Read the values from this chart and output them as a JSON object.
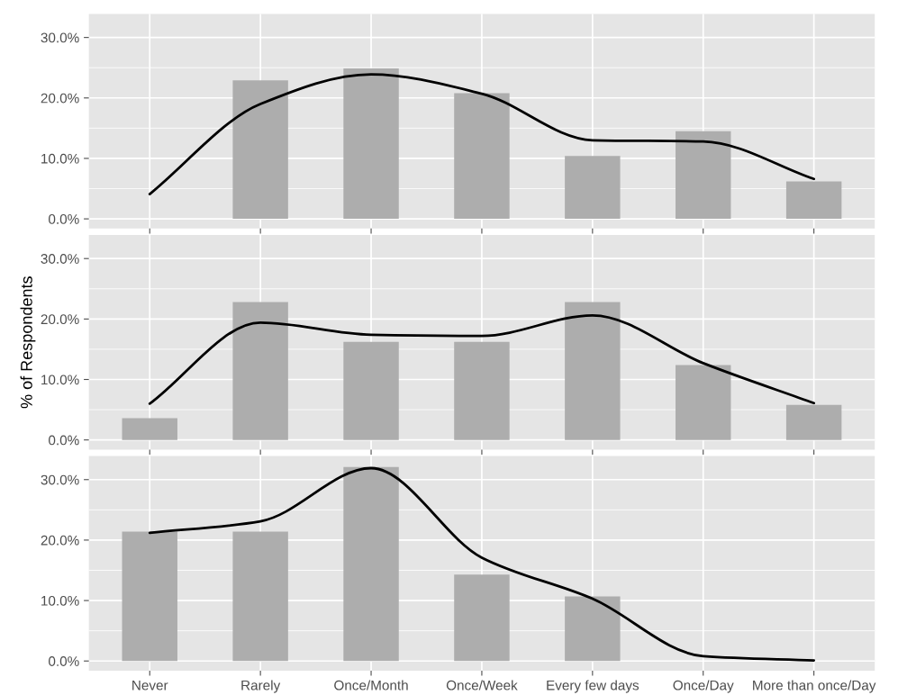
{
  "chart_data": [
    {
      "type": "bar",
      "categories": [
        null,
        null,
        null,
        null,
        null,
        null,
        null
      ],
      "ylim": [
        -1.6,
        33.9
      ],
      "yticks": [
        {
          "value": 0,
          "label": "0.0%"
        },
        {
          "value": 10,
          "label": "10.0%"
        },
        {
          "value": 20,
          "label": "20.0%"
        },
        {
          "value": 30,
          "label": "30.0%"
        }
      ],
      "grid": true,
      "tick_labels": "y",
      "series": [
        {
          "color": "#adadad",
          "values": [
            0,
            22.9,
            24.9,
            20.8,
            10.4,
            14.5,
            6.2
          ]
        },
        {
          "type": "line",
          "color": "#000000",
          "values": [
            4.1,
            19.0,
            23.9,
            20.7,
            13.0,
            12.8,
            6.6
          ]
        }
      ]
    },
    {
      "type": "bar",
      "ylabel": "% of Respondents",
      "categories": [
        null,
        null,
        null,
        null,
        null,
        null,
        null
      ],
      "ylim": [
        -1.6,
        33.9
      ],
      "yticks": [
        {
          "value": 0,
          "label": "0.0%"
        },
        {
          "value": 10,
          "label": "10.0%"
        },
        {
          "value": 20,
          "label": "20.0%"
        },
        {
          "value": 30,
          "label": "30.0%"
        }
      ],
      "grid": true,
      "tick_labels": "y",
      "series": [
        {
          "color": "#adadad",
          "values": [
            3.6,
            22.8,
            16.2,
            16.2,
            22.8,
            12.4,
            5.8
          ]
        },
        {
          "type": "line",
          "color": "#000000",
          "values": [
            6.0,
            19.4,
            17.4,
            17.2,
            20.6,
            12.7,
            6.1
          ]
        }
      ]
    },
    {
      "type": "bar",
      "categories": [
        "Never",
        "Rarely",
        "Once/Month",
        "Once/Week",
        "Every few days",
        "Once/Day",
        "More than once/Day"
      ],
      "ylim": [
        -1.6,
        33.9
      ],
      "yticks": [
        {
          "value": 0,
          "label": "0.0%"
        },
        {
          "value": 10,
          "label": "10.0%"
        },
        {
          "value": 20,
          "label": "20.0%"
        },
        {
          "value": 30,
          "label": "30.0%"
        }
      ],
      "grid": true,
      "series": [
        {
          "color": "#adadad",
          "values": [
            21.4,
            21.4,
            32.1,
            14.3,
            10.7,
            0,
            0
          ]
        },
        {
          "type": "line",
          "color": "#000000",
          "values": [
            21.2,
            23.1,
            31.9,
            17.1,
            10.3,
            0.8,
            0.1
          ]
        }
      ]
    }
  ]
}
